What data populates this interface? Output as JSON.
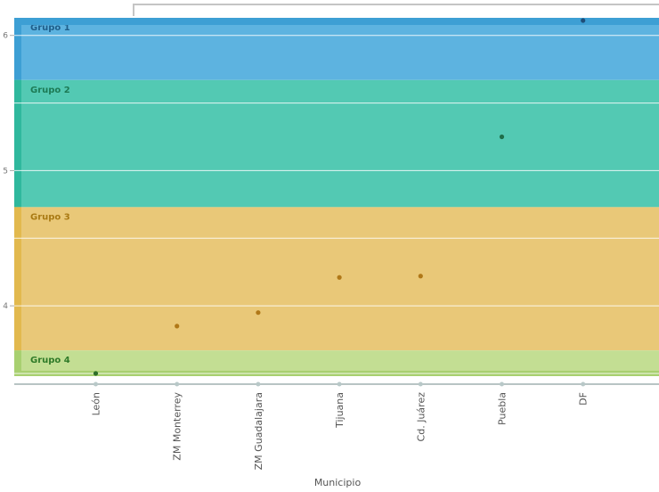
{
  "chart_data": {
    "type": "scatter",
    "title": "",
    "xlabel": "Municipio",
    "ylabel": "",
    "ylim": [
      3.48,
      6.13
    ],
    "yticks": [
      "4",
      "5",
      "6"
    ],
    "categories": [
      "León",
      "ZM Monterrey",
      "ZM Guadalajara",
      "Tijuana",
      "Cd. Juárez",
      "Puebla",
      "DF"
    ],
    "values": [
      3.5,
      3.85,
      3.95,
      4.21,
      4.22,
      5.25,
      6.11
    ],
    "point_groups": [
      "Grupo 4",
      "Grupo 3",
      "Grupo 3",
      "Grupo 3",
      "Grupo 3",
      "Grupo 2",
      "Grupo 1"
    ],
    "bands": [
      {
        "name": "Grupo 1",
        "from": 5.67,
        "to": 6.13,
        "fill": "#5db3e0",
        "edge": "#3d9fd4",
        "label_color": "#1f5f8b"
      },
      {
        "name": "Grupo 2",
        "from": 4.73,
        "to": 5.67,
        "fill": "#53c9b3",
        "edge": "#2fb89d",
        "label_color": "#1d7a55"
      },
      {
        "name": "Grupo 3",
        "from": 3.67,
        "to": 4.73,
        "fill": "#e9c878",
        "edge": "#e2b94e",
        "label_color": "#a97a14"
      },
      {
        "name": "Grupo 4",
        "from": 3.48,
        "to": 3.67,
        "fill": "#c3de93",
        "edge": "#a8d070",
        "label_color": "#2f7a28"
      }
    ],
    "point_colors": {
      "Grupo 1": "#1f4e79",
      "Grupo 2": "#1f6e4a",
      "Grupo 3": "#b07818",
      "Grupo 4": "#2d6e2a"
    },
    "grid": true
  }
}
